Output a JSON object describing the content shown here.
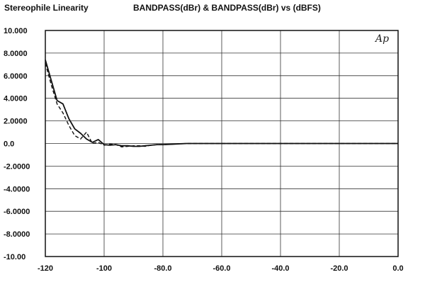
{
  "header": {
    "left": "Stereophile Linearity",
    "center": "BANDPASS(dBr) & BANDPASS(dBr) vs    (dBFS)"
  },
  "logo_text": "Ap",
  "chart_data": {
    "type": "line",
    "xlim": [
      -120,
      0
    ],
    "ylim": [
      -10,
      10
    ],
    "grid": true,
    "xticks": [
      -120,
      -100,
      -80,
      -60,
      -40,
      -20,
      0
    ],
    "xtick_labels": [
      "-120",
      "-100",
      "-80.0",
      "-60.0",
      "-40.0",
      "-20.0",
      "0.0"
    ],
    "yticks": [
      10,
      8,
      6,
      4,
      2,
      0,
      -2,
      -4,
      -6,
      -8,
      -10
    ],
    "ytick_labels": [
      "10.000",
      "8.0000",
      "6.0000",
      "4.0000",
      "2.0000",
      "0.0",
      "-2.0000",
      "-4.0000",
      "-6.0000",
      "-8.0000",
      "-10.00"
    ],
    "series": [
      {
        "style": "solid",
        "color": "#111111",
        "x": [
          -120,
          -118,
          -116,
          -114,
          -112,
          -110,
          -108,
          -106,
          -104,
          -102,
          -100,
          -98,
          -96,
          -94,
          -92,
          -90,
          -88,
          -86,
          -84,
          -82,
          -80,
          -76,
          -72,
          -68,
          -60,
          -40,
          -20,
          0
        ],
        "y": [
          7.4,
          5.6,
          3.8,
          3.5,
          2.2,
          1.3,
          0.9,
          0.4,
          0.1,
          0.35,
          -0.1,
          -0.15,
          -0.1,
          -0.2,
          -0.2,
          -0.25,
          -0.25,
          -0.2,
          -0.15,
          -0.1,
          -0.1,
          -0.05,
          0.0,
          0.0,
          0.0,
          0.0,
          0.0,
          0.0
        ]
      },
      {
        "style": "dashed",
        "color": "#111111",
        "x": [
          -120,
          -118,
          -116,
          -114,
          -112,
          -110,
          -108,
          -106,
          -104,
          -102,
          -100,
          -98,
          -96,
          -94,
          -92,
          -90,
          -88,
          -86,
          -84,
          -82,
          -80,
          -76,
          -72,
          -68,
          -60,
          -40,
          -20,
          0
        ],
        "y": [
          7.1,
          5.2,
          3.5,
          2.7,
          1.6,
          0.7,
          0.4,
          1.0,
          0.0,
          0.1,
          -0.15,
          -0.05,
          -0.1,
          -0.3,
          -0.25,
          -0.2,
          -0.2,
          -0.25,
          -0.15,
          -0.1,
          -0.1,
          -0.05,
          0.0,
          0.0,
          0.0,
          0.0,
          0.0,
          0.0
        ]
      }
    ]
  }
}
